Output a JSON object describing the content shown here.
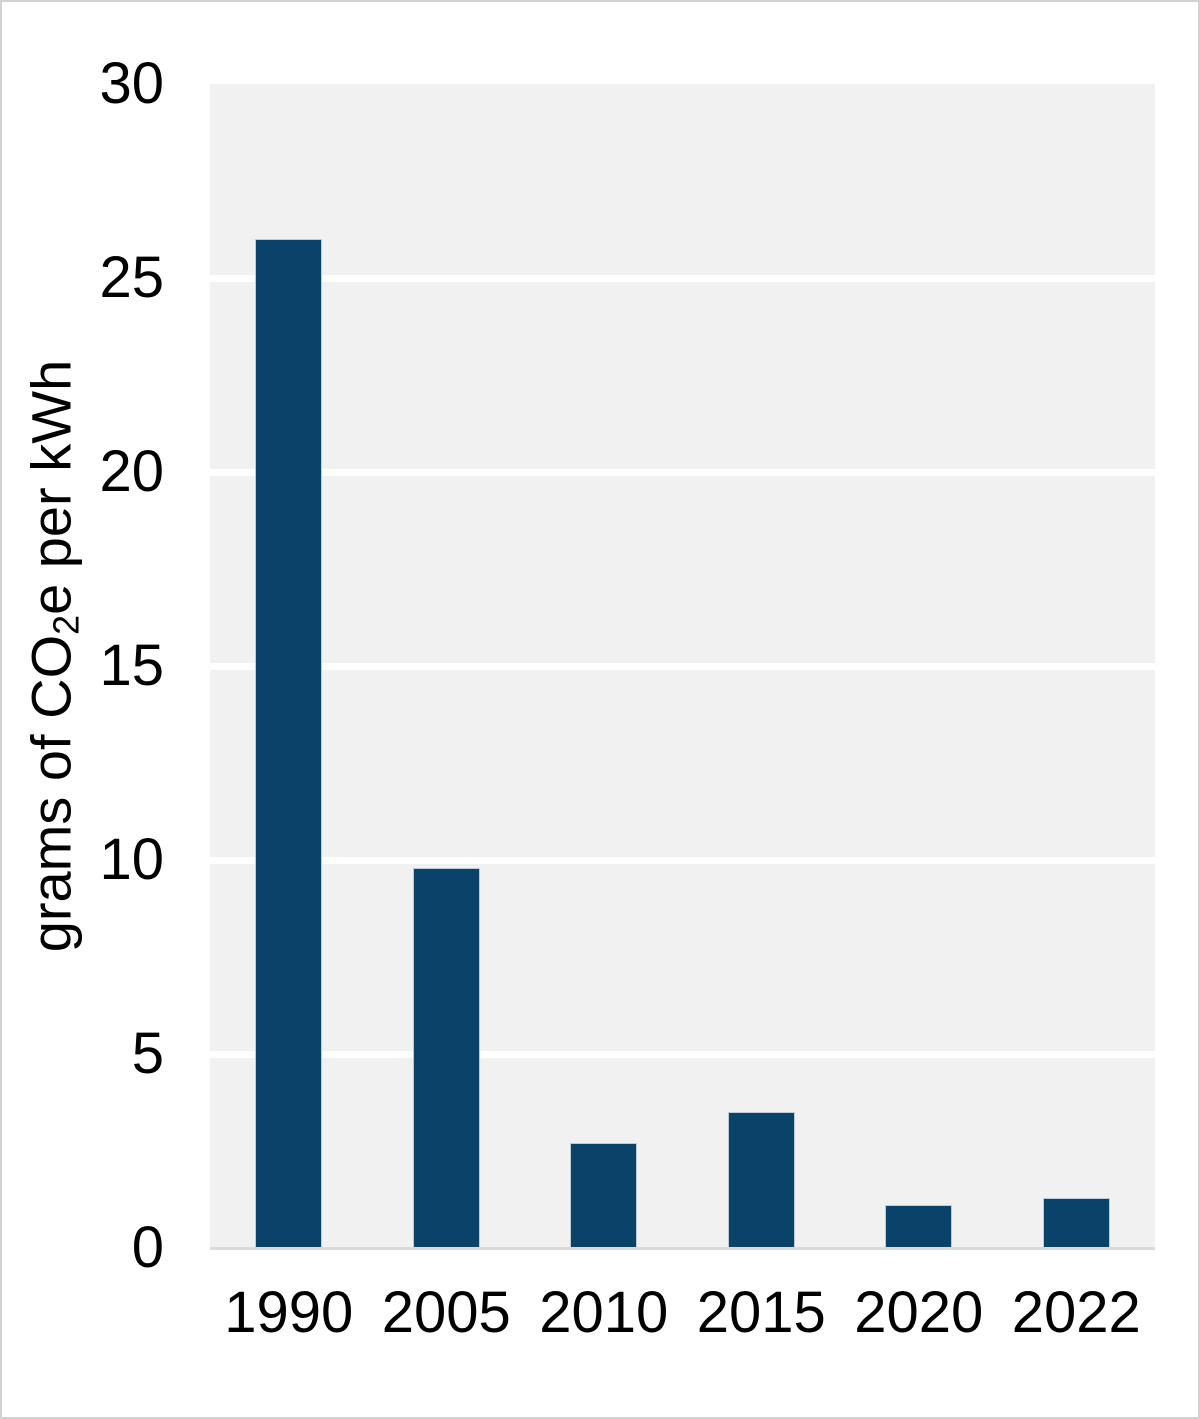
{
  "chart_data": {
    "type": "bar",
    "title": "",
    "categories": [
      "1990",
      "2005",
      "2010",
      "2015",
      "2020",
      "2022"
    ],
    "values": [
      26,
      9.8,
      2.7,
      3.5,
      1.1,
      1.3
    ],
    "xlabel": "",
    "ylabel": "grams of CO2e per kWh",
    "ylabel_parts": {
      "prefix": "grams of CO",
      "sub": "2",
      "suffix": "e per kWh"
    },
    "yticks": [
      0,
      5,
      10,
      15,
      20,
      25,
      30
    ],
    "ylim": [
      0,
      30
    ],
    "grid": true,
    "legend_position": "none",
    "colors": {
      "bar": "#0a436a",
      "bar_edge": "#bfccd6",
      "plot_background": "#f1f1f1",
      "gridline": "#ffffff",
      "axis_line": "#dadada",
      "text": "#000000",
      "frame_border": "#d2d2d2"
    }
  }
}
